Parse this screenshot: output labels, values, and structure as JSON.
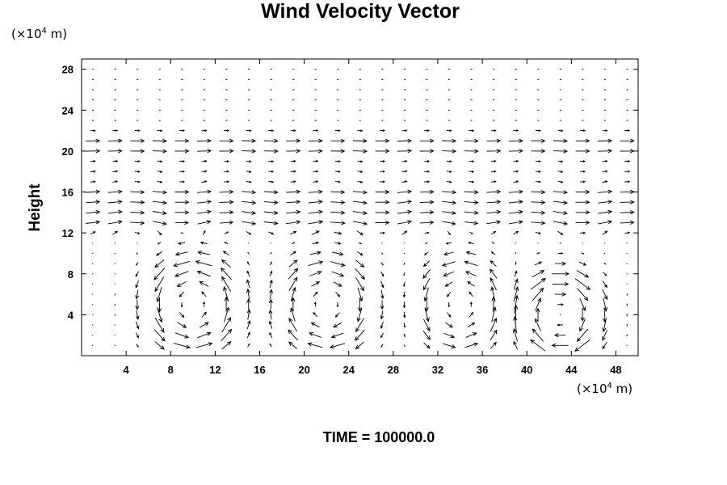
{
  "chart_data": {
    "type": "vector_field",
    "title": "Wind Velocity Vector",
    "ylabel": "Height",
    "xlabel": "",
    "y_unit": {
      "prefix": "(×10",
      "exp": "4",
      "suffix": " m)"
    },
    "x_unit": {
      "prefix": "(×10",
      "exp": "4",
      "suffix": " m)"
    },
    "footer": "TIME = 100000.0",
    "xlim": [
      0,
      50
    ],
    "ylim": [
      0,
      29
    ],
    "xticks": [
      4,
      8,
      12,
      16,
      20,
      24,
      28,
      32,
      36,
      40,
      44,
      48
    ],
    "yticks": [
      4,
      8,
      12,
      16,
      20,
      24,
      28
    ],
    "grid": false,
    "legend": "none",
    "grid_step": {
      "x": 2,
      "y": 1
    },
    "arrow_color": "#000000",
    "description": "",
    "cells": [
      {
        "center_x": 10,
        "center_y": 5,
        "radius_x": 4.5,
        "radius_y": 5,
        "sense": "ccw",
        "strength": 1.0
      },
      {
        "center_x": 22,
        "center_y": 5,
        "radius_x": 4.5,
        "radius_y": 5,
        "sense": "cw",
        "strength": 0.9
      },
      {
        "center_x": 34,
        "center_y": 5,
        "radius_x": 4,
        "radius_y": 5,
        "sense": "ccw",
        "strength": 0.8
      },
      {
        "center_x": 43,
        "center_y": 4,
        "radius_x": 4,
        "radius_y": 4.5,
        "sense": "cw",
        "strength": 1.1
      }
    ],
    "upper_flow": {
      "bands": [
        13,
        14,
        15,
        16,
        20,
        21
      ],
      "u": 1.0
    }
  }
}
